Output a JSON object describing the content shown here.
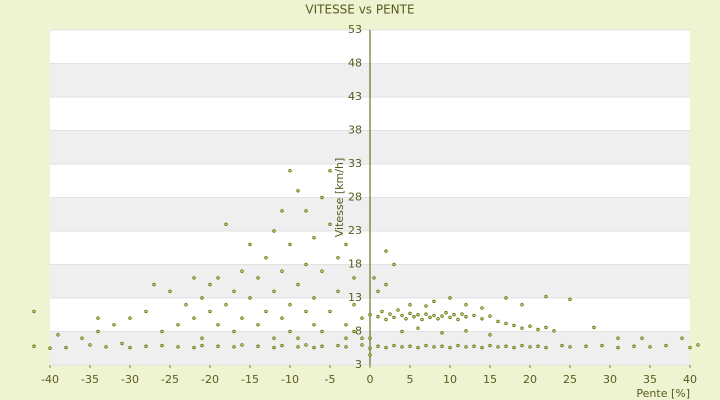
{
  "chart_data": {
    "type": "scatter",
    "title": "VITESSE vs PENTE",
    "x_label": "Pente [%]",
    "y_label": "Vitesse [km/h]",
    "color": "#5b6e00",
    "xlim": [
      -40,
      40
    ],
    "ylim": [
      3,
      53
    ],
    "xticks": [
      -40,
      -35,
      -30,
      -25,
      -20,
      -15,
      -10,
      -5,
      0,
      5,
      10,
      15,
      20,
      25,
      30,
      35,
      40
    ],
    "yticks": [
      3,
      8,
      13,
      18,
      23,
      28,
      33,
      38,
      43,
      48,
      53
    ],
    "grid": true,
    "x": [
      -42,
      -40,
      -38,
      -35,
      -33,
      -31,
      -30,
      -28,
      -26,
      -24,
      -22,
      -21,
      -19,
      -17,
      -16,
      -14,
      -12,
      -11,
      -9,
      -8,
      -7,
      -6,
      -4,
      -3,
      -1,
      0,
      0,
      0,
      1,
      2,
      3,
      4,
      5,
      6,
      7,
      8,
      9,
      10,
      11,
      12,
      13,
      14,
      15,
      16,
      17,
      18,
      19,
      20,
      21,
      22,
      24,
      25,
      27,
      29,
      31,
      33,
      35,
      37,
      40,
      41,
      0,
      1,
      1.5,
      2,
      2.5,
      3,
      3.5,
      4,
      4.5,
      5,
      5.5,
      6,
      6.5,
      7,
      7.5,
      8,
      8.5,
      9,
      9.5,
      10,
      10.5,
      11,
      11.5,
      12,
      13,
      14,
      15,
      16,
      17,
      18,
      19,
      20,
      21,
      22,
      23,
      2,
      3,
      5,
      7,
      8,
      10,
      12,
      14,
      17,
      19,
      22,
      25,
      1,
      2,
      0.5,
      4,
      6,
      9,
      12,
      15,
      28,
      31,
      34,
      39,
      -1,
      -2,
      -2,
      -3,
      -3,
      -4,
      -4,
      -5,
      -5,
      -5,
      -6,
      -6,
      -6,
      -7,
      -7,
      -7,
      -8,
      -8,
      -8,
      -9,
      -9,
      -9,
      -10,
      -10,
      -10,
      -10,
      -11,
      -11,
      -11,
      -12,
      -12,
      -12,
      -13,
      -13,
      -14,
      -14,
      -15,
      -15,
      -16,
      -16,
      -17,
      -17,
      -18,
      -18,
      -19,
      -19,
      -20,
      -20,
      -21,
      -21,
      -22,
      -22,
      -23,
      -24,
      -25,
      -26,
      -27,
      -28,
      -30,
      -32,
      -34,
      -34,
      -36,
      -39,
      -42,
      -3,
      -2,
      -1
    ],
    "values": [
      5.8,
      5.5,
      5.6,
      6.0,
      5.7,
      6.2,
      5.6,
      5.8,
      5.9,
      5.7,
      5.6,
      5.9,
      5.8,
      5.7,
      6.0,
      5.8,
      5.6,
      5.9,
      5.7,
      6.0,
      5.6,
      5.8,
      5.9,
      5.7,
      6.0,
      5.5,
      4.5,
      7,
      5.8,
      5.6,
      5.9,
      5.7,
      5.8,
      5.6,
      5.9,
      5.7,
      5.8,
      5.6,
      5.9,
      5.7,
      5.8,
      5.6,
      5.9,
      5.7,
      5.8,
      5.6,
      5.9,
      5.7,
      5.8,
      5.6,
      5.9,
      5.7,
      5.8,
      5.9,
      5.6,
      5.8,
      5.7,
      5.9,
      5.6,
      6.0,
      10.5,
      10.2,
      11,
      9.8,
      10.6,
      10.1,
      11.2,
      10.4,
      9.9,
      10.7,
      10.2,
      10.5,
      9.8,
      10.6,
      10.1,
      10.4,
      9.9,
      10.3,
      10.8,
      10.1,
      10.5,
      9.8,
      10.6,
      10.2,
      10.4,
      9.9,
      10.3,
      9.5,
      9.2,
      8.9,
      8.5,
      8.8,
      8.3,
      8.6,
      8.1,
      20,
      18,
      12,
      11.8,
      12.5,
      13,
      12,
      11.5,
      13,
      12,
      13.2,
      12.8,
      14,
      15,
      16,
      8,
      8.5,
      7.8,
      8.1,
      7.5,
      8.6,
      7,
      7,
      7,
      10,
      12,
      16,
      9,
      21,
      14,
      19,
      11,
      24,
      32,
      8,
      17,
      28,
      13,
      22,
      9,
      18,
      26,
      11,
      15,
      29,
      7,
      12,
      21,
      32,
      8,
      17,
      26,
      10,
      14,
      23,
      7,
      19,
      11,
      16,
      9,
      13,
      21,
      10,
      17,
      8,
      14,
      12,
      24,
      9,
      16,
      11,
      15,
      13,
      7,
      16,
      10,
      12,
      9,
      14,
      8,
      15,
      11,
      10,
      9,
      8,
      10,
      7,
      7.5,
      11,
      7,
      8,
      7
    ]
  }
}
